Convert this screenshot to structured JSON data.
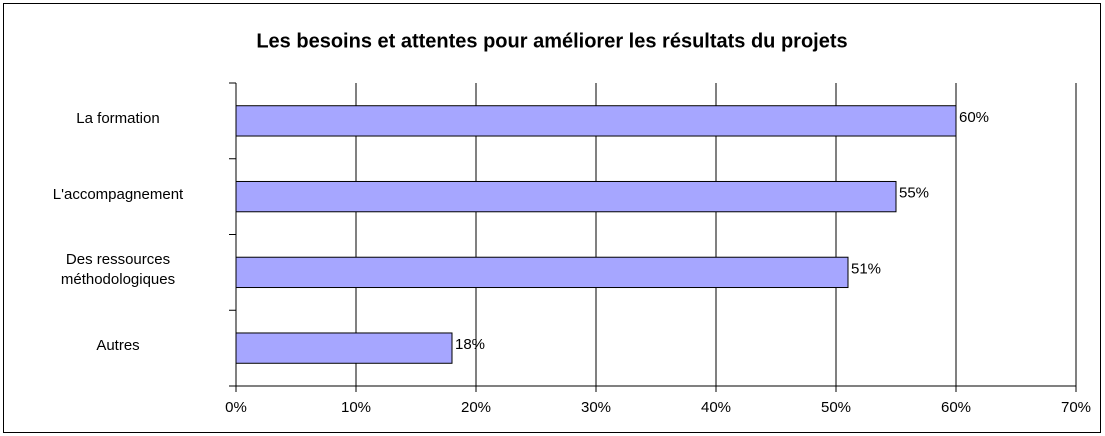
{
  "chart_data": {
    "type": "bar",
    "orientation": "horizontal",
    "title": "Les besoins et attentes pour améliorer les résultats du projets",
    "categories": [
      "La formation",
      "L'accompagnement",
      "Des ressources méthodologiques",
      "Autres"
    ],
    "values": [
      60,
      55,
      51,
      18
    ],
    "value_labels": [
      "60%",
      "55%",
      "51%",
      "18%"
    ],
    "color": "#a6a6ff",
    "xlim": [
      0,
      70
    ],
    "xticks": [
      {
        "value": 0,
        "label": "0%"
      },
      {
        "value": 10,
        "label": "10%"
      },
      {
        "value": 20,
        "label": "20%"
      },
      {
        "value": 30,
        "label": "30%"
      },
      {
        "value": 40,
        "label": "40%"
      },
      {
        "value": 50,
        "label": "50%"
      },
      {
        "value": 60,
        "label": "60%"
      },
      {
        "value": 70,
        "label": "70%"
      }
    ],
    "grid": true
  }
}
